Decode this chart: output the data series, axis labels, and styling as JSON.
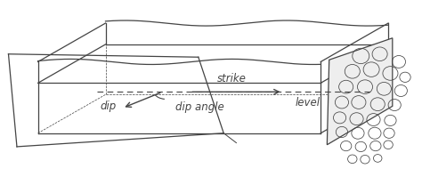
{
  "bg_color": "#ffffff",
  "line_color": "#444444",
  "figsize": [
    4.74,
    2.17
  ],
  "dpi": 100,
  "labels": {
    "strike": "strike",
    "dip": "dip",
    "dip_angle": "dip angle",
    "level": "level"
  },
  "rock_circles": [
    [
      8.55,
      3.55,
      0.2
    ],
    [
      9.0,
      3.6,
      0.18
    ],
    [
      9.45,
      3.4,
      0.16
    ],
    [
      8.35,
      3.15,
      0.18
    ],
    [
      8.8,
      3.2,
      0.19
    ],
    [
      9.25,
      3.1,
      0.18
    ],
    [
      9.6,
      3.0,
      0.13
    ],
    [
      8.2,
      2.75,
      0.17
    ],
    [
      8.65,
      2.75,
      0.18
    ],
    [
      9.1,
      2.7,
      0.17
    ],
    [
      9.5,
      2.65,
      0.15
    ],
    [
      8.1,
      2.35,
      0.16
    ],
    [
      8.5,
      2.35,
      0.17
    ],
    [
      8.95,
      2.3,
      0.17
    ],
    [
      9.35,
      2.28,
      0.15
    ],
    [
      8.05,
      1.95,
      0.15
    ],
    [
      8.45,
      1.92,
      0.16
    ],
    [
      8.85,
      1.9,
      0.16
    ],
    [
      9.25,
      1.88,
      0.14
    ],
    [
      8.1,
      1.58,
      0.14
    ],
    [
      8.48,
      1.55,
      0.15
    ],
    [
      8.88,
      1.55,
      0.15
    ],
    [
      9.22,
      1.55,
      0.13
    ],
    [
      8.2,
      1.22,
      0.13
    ],
    [
      8.55,
      1.2,
      0.13
    ],
    [
      8.9,
      1.22,
      0.13
    ],
    [
      9.2,
      1.25,
      0.11
    ],
    [
      8.35,
      0.88,
      0.11
    ],
    [
      8.65,
      0.87,
      0.11
    ],
    [
      8.95,
      0.9,
      0.1
    ]
  ]
}
